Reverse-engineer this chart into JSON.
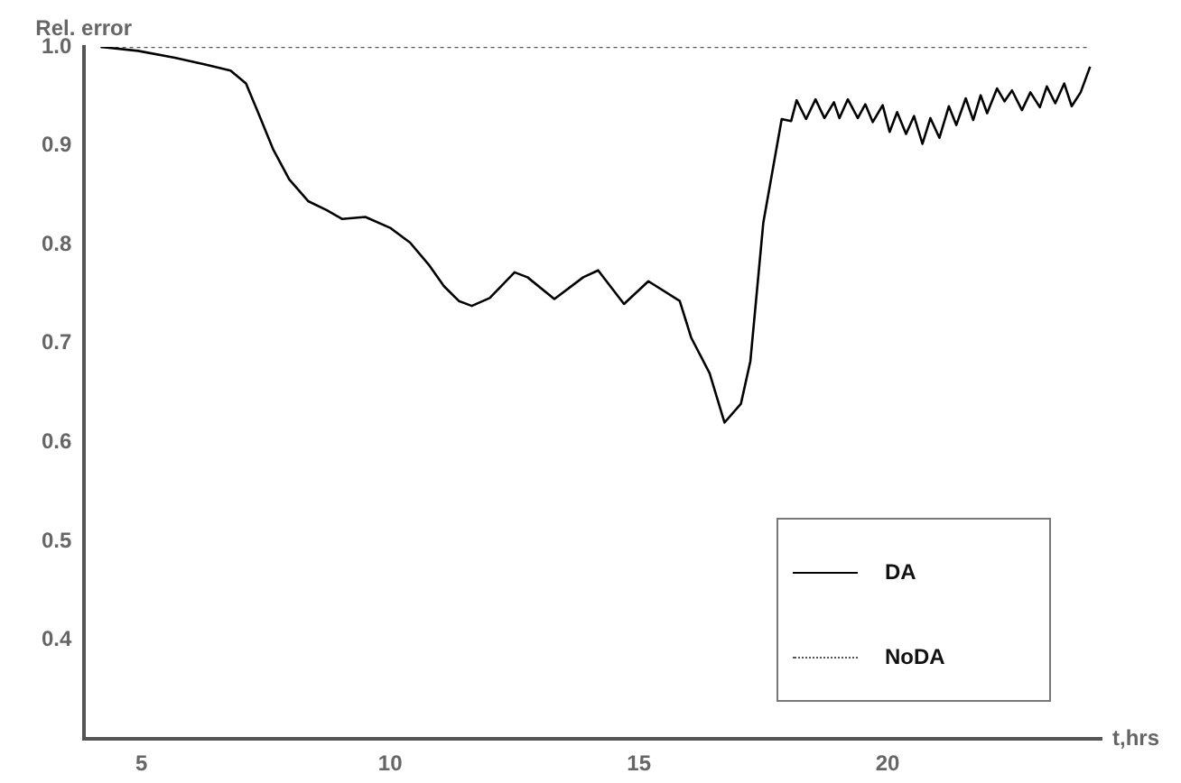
{
  "chart_data": {
    "type": "line",
    "xlabel": "t,hrs",
    "ylabel": "Rel. error",
    "xlim": [
      3.85,
      24.3
    ],
    "ylim": [
      0.3,
      1.0
    ],
    "xticks": [
      5,
      10,
      15,
      20
    ],
    "yticks": [
      {
        "value": 0.4,
        "label": "0.4"
      },
      {
        "value": 0.5,
        "label": "0.5"
      },
      {
        "value": 0.6,
        "label": "0.6"
      },
      {
        "value": 0.7,
        "label": "0.7"
      },
      {
        "value": 0.8,
        "label": "0.8"
      },
      {
        "value": 0.9,
        "label": "0.9"
      },
      {
        "value": 1.0,
        "label": "1.0"
      }
    ],
    "grid": false,
    "legend": "bottom right",
    "marker": "none",
    "series": [
      {
        "name": "DA",
        "color": "#000000",
        "line_style": "solid",
        "x": [
          4.18,
          4.93,
          5.67,
          6.3,
          6.79,
          7.1,
          7.35,
          7.65,
          7.97,
          8.35,
          8.72,
          9.03,
          9.5,
          10.0,
          10.4,
          10.77,
          11.08,
          11.38,
          11.64,
          12.0,
          12.5,
          12.76,
          13.3,
          13.88,
          14.18,
          14.7,
          15.19,
          15.82,
          16.05,
          16.42,
          16.72,
          17.05,
          17.24,
          17.5,
          17.87,
          18.06,
          18.17,
          18.36,
          18.55,
          18.73,
          18.92,
          19.03,
          19.2,
          19.4,
          19.55,
          19.7,
          19.9,
          20.04,
          20.19,
          20.37,
          20.53,
          20.7,
          20.86,
          21.04,
          21.23,
          21.38,
          21.57,
          21.72,
          21.87,
          22.0,
          22.2,
          22.35,
          22.5,
          22.7,
          22.87,
          23.06,
          23.2,
          23.37,
          23.55,
          23.7,
          23.88,
          24.07
        ],
        "values": [
          1.0,
          0.996,
          0.989,
          0.982,
          0.976,
          0.963,
          0.933,
          0.896,
          0.866,
          0.844,
          0.835,
          0.826,
          0.828,
          0.817,
          0.802,
          0.78,
          0.758,
          0.743,
          0.738,
          0.746,
          0.772,
          0.767,
          0.745,
          0.767,
          0.774,
          0.74,
          0.763,
          0.743,
          0.706,
          0.67,
          0.62,
          0.639,
          0.682,
          0.822,
          0.927,
          0.925,
          0.946,
          0.927,
          0.947,
          0.928,
          0.944,
          0.928,
          0.947,
          0.928,
          0.942,
          0.924,
          0.941,
          0.914,
          0.934,
          0.912,
          0.93,
          0.902,
          0.928,
          0.908,
          0.94,
          0.921,
          0.948,
          0.926,
          0.951,
          0.933,
          0.958,
          0.945,
          0.956,
          0.936,
          0.954,
          0.939,
          0.96,
          0.943,
          0.963,
          0.94,
          0.954,
          0.98
        ]
      },
      {
        "name": "NoDA",
        "color": "#555555",
        "line_style": "dotted",
        "x": [
          4.18,
          24.07
        ],
        "values": [
          1.0,
          1.0
        ]
      }
    ]
  }
}
